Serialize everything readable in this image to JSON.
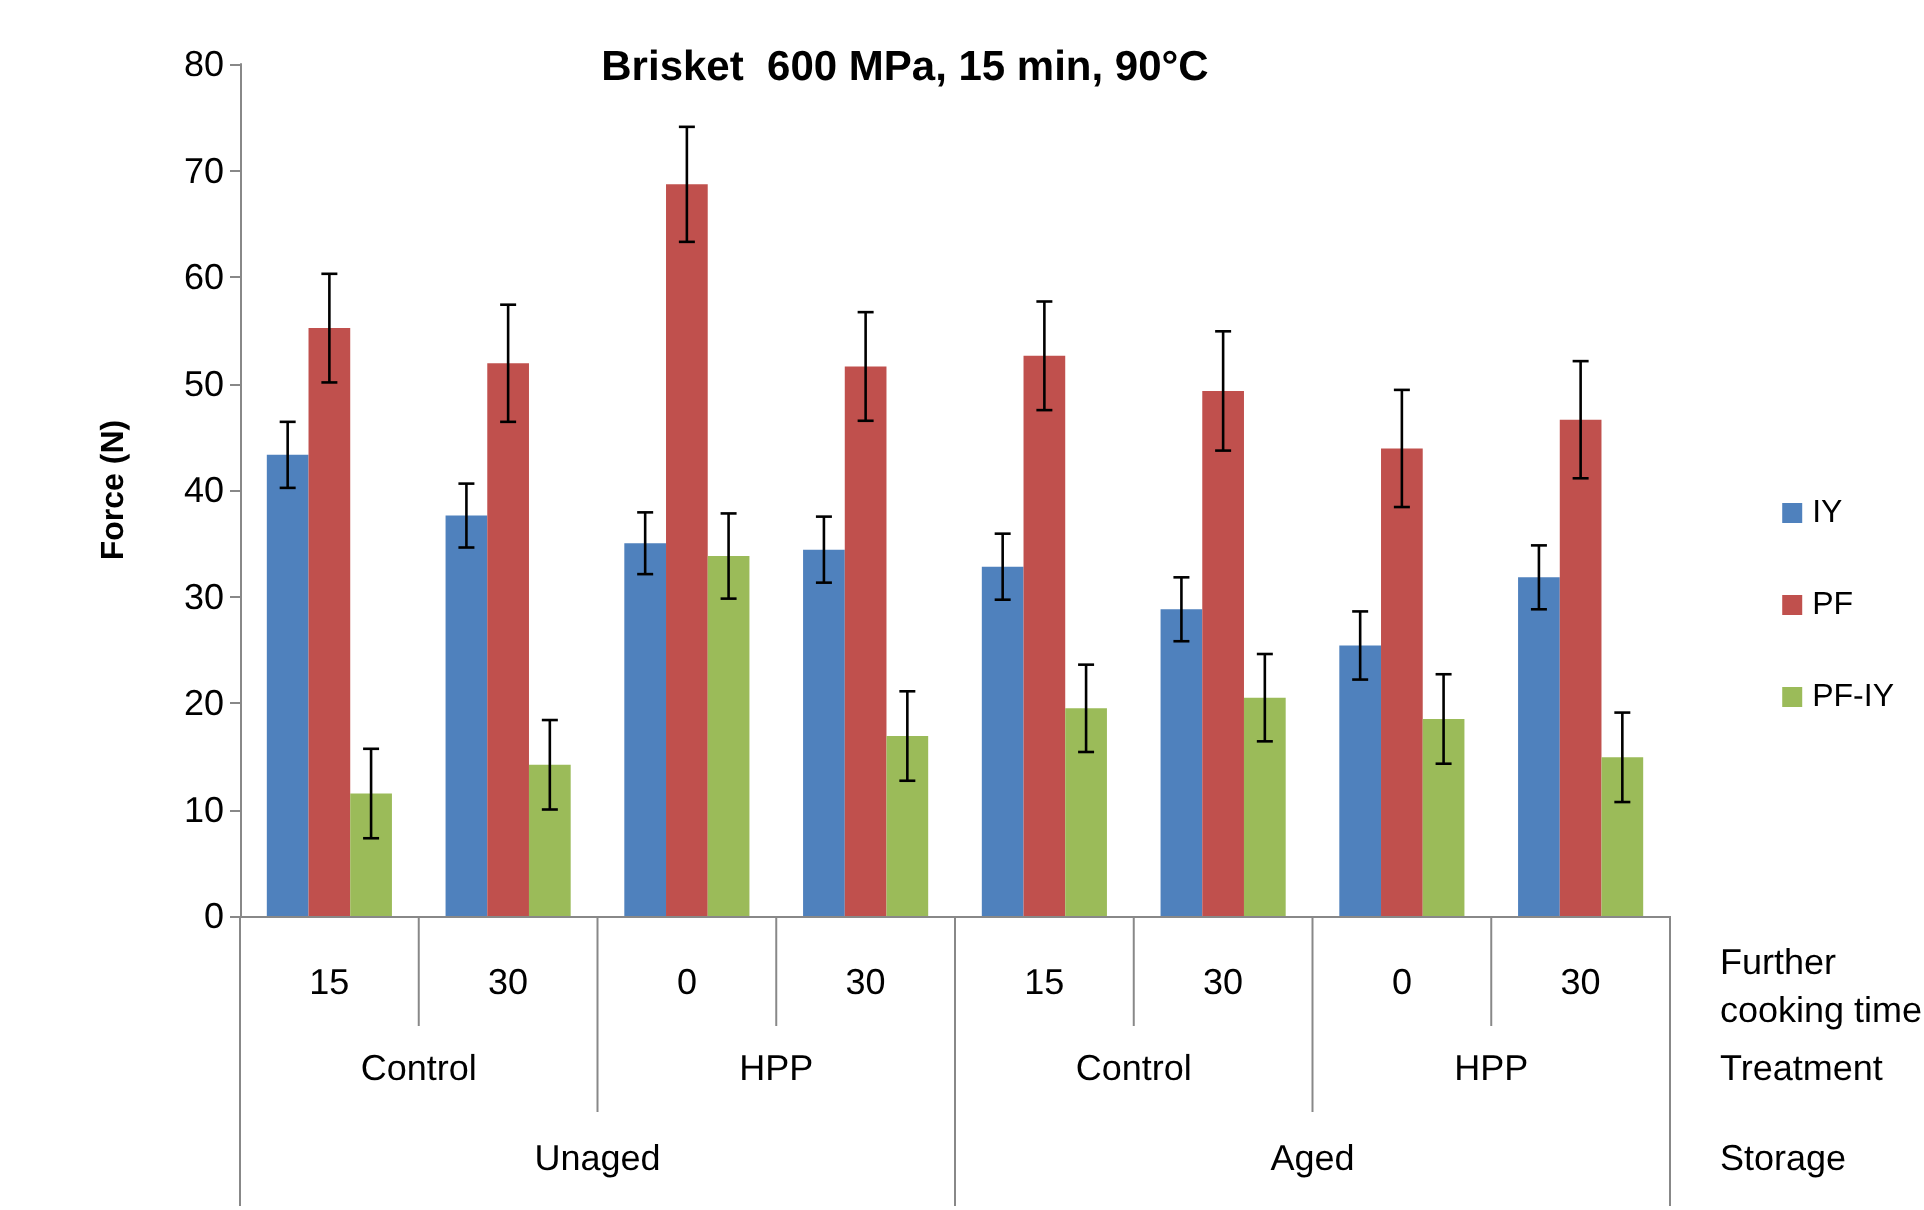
{
  "chart_data": {
    "type": "bar",
    "title": "Brisket  600 MPa, 15 min, 90°C",
    "ylabel": "Force (N)",
    "xlabel": "Further cooking time",
    "categories": [
      "15",
      "30",
      "0",
      "30",
      "15",
      "30",
      "0",
      "30"
    ],
    "series": [
      {
        "name": "IY",
        "color": "#4f81bd",
        "values": [
          43.3,
          37.6,
          35.0,
          34.4,
          32.8,
          28.8,
          25.4,
          31.8
        ],
        "errors": [
          3.1,
          3.0,
          2.9,
          3.1,
          3.1,
          3.0,
          3.2,
          3.0
        ]
      },
      {
        "name": "PF",
        "color": "#c0504d",
        "values": [
          55.2,
          51.9,
          68.7,
          51.6,
          52.6,
          49.3,
          43.9,
          46.6
        ],
        "errors": [
          5.1,
          5.5,
          5.4,
          5.1,
          5.1,
          5.6,
          5.5,
          5.5
        ]
      },
      {
        "name": "PF-IY",
        "color": "#9bbb59",
        "values": [
          11.5,
          14.2,
          33.8,
          16.9,
          19.5,
          20.5,
          18.5,
          14.9
        ],
        "errors": [
          4.2,
          4.2,
          4.0,
          4.2,
          4.1,
          4.1,
          4.2,
          4.2
        ]
      }
    ],
    "annotations": [
      "Treatment",
      "Storage",
      "Control",
      "HPP",
      "Control",
      "HPP",
      "Unaged",
      "Aged"
    ],
    "ylim": [
      0,
      80
    ],
    "yticks": [
      0,
      10,
      20,
      30,
      40,
      50,
      60,
      70,
      80
    ],
    "grid": false,
    "legend": "right"
  }
}
